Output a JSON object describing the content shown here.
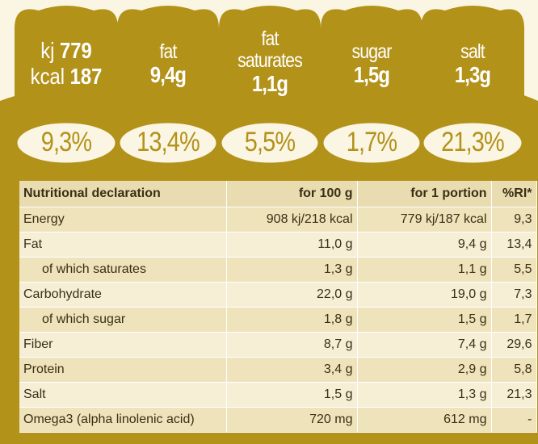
{
  "gda": {
    "energy": {
      "kj_unit": "kj",
      "kj_value": "779",
      "kcal_unit": "kcal",
      "kcal_value": "187",
      "percent": "9,3%"
    },
    "fat": {
      "name": "fat",
      "value": "9,4g",
      "percent": "13,4%"
    },
    "fat_saturates": {
      "name_line1": "fat",
      "name_line2": "saturates",
      "value": "1,1g",
      "percent": "5,5%"
    },
    "sugar": {
      "name": "sugar",
      "value": "1,5g",
      "percent": "1,7%"
    },
    "salt": {
      "name": "salt",
      "value": "1,3g",
      "percent": "21,3%"
    }
  },
  "colors": {
    "gold": "#b3921a",
    "cream": "#fbf6e4",
    "header_bg": "#e8dcb0",
    "row_a": "#efe3bb",
    "row_b": "#f6efd6"
  },
  "table": {
    "headers": [
      "Nutritional declaration",
      "for 100 g",
      "for 1 portion",
      "%RI*"
    ],
    "rows": [
      {
        "label": "Energy",
        "per100": "908 kj/218 kcal",
        "portion": "779 kj/187 kcal",
        "ri": "9,3"
      },
      {
        "label": "Fat",
        "per100": "11,0 g",
        "portion": "9,4 g",
        "ri": "13,4"
      },
      {
        "label": "of which saturates",
        "per100": "1,3 g",
        "portion": "1,1 g",
        "ri": "5,5"
      },
      {
        "label": "Carbohydrate",
        "per100": "22,0 g",
        "portion": "19,0 g",
        "ri": "7,3"
      },
      {
        "label": "of which sugar",
        "per100": "1,8 g",
        "portion": "1,5 g",
        "ri": "1,7"
      },
      {
        "label": "Fiber",
        "per100": "8,7 g",
        "portion": "7,4 g",
        "ri": "29,6"
      },
      {
        "label": "Protein",
        "per100": "3,4 g",
        "portion": "2,9 g",
        "ri": "5,8"
      },
      {
        "label": "Salt",
        "per100": "1,5 g",
        "portion": "1,3 g",
        "ri": "21,3"
      },
      {
        "label": "Omega3 (alpha linolenic acid)",
        "per100": "720 mg",
        "portion": "612 mg",
        "ri": "-"
      }
    ]
  }
}
